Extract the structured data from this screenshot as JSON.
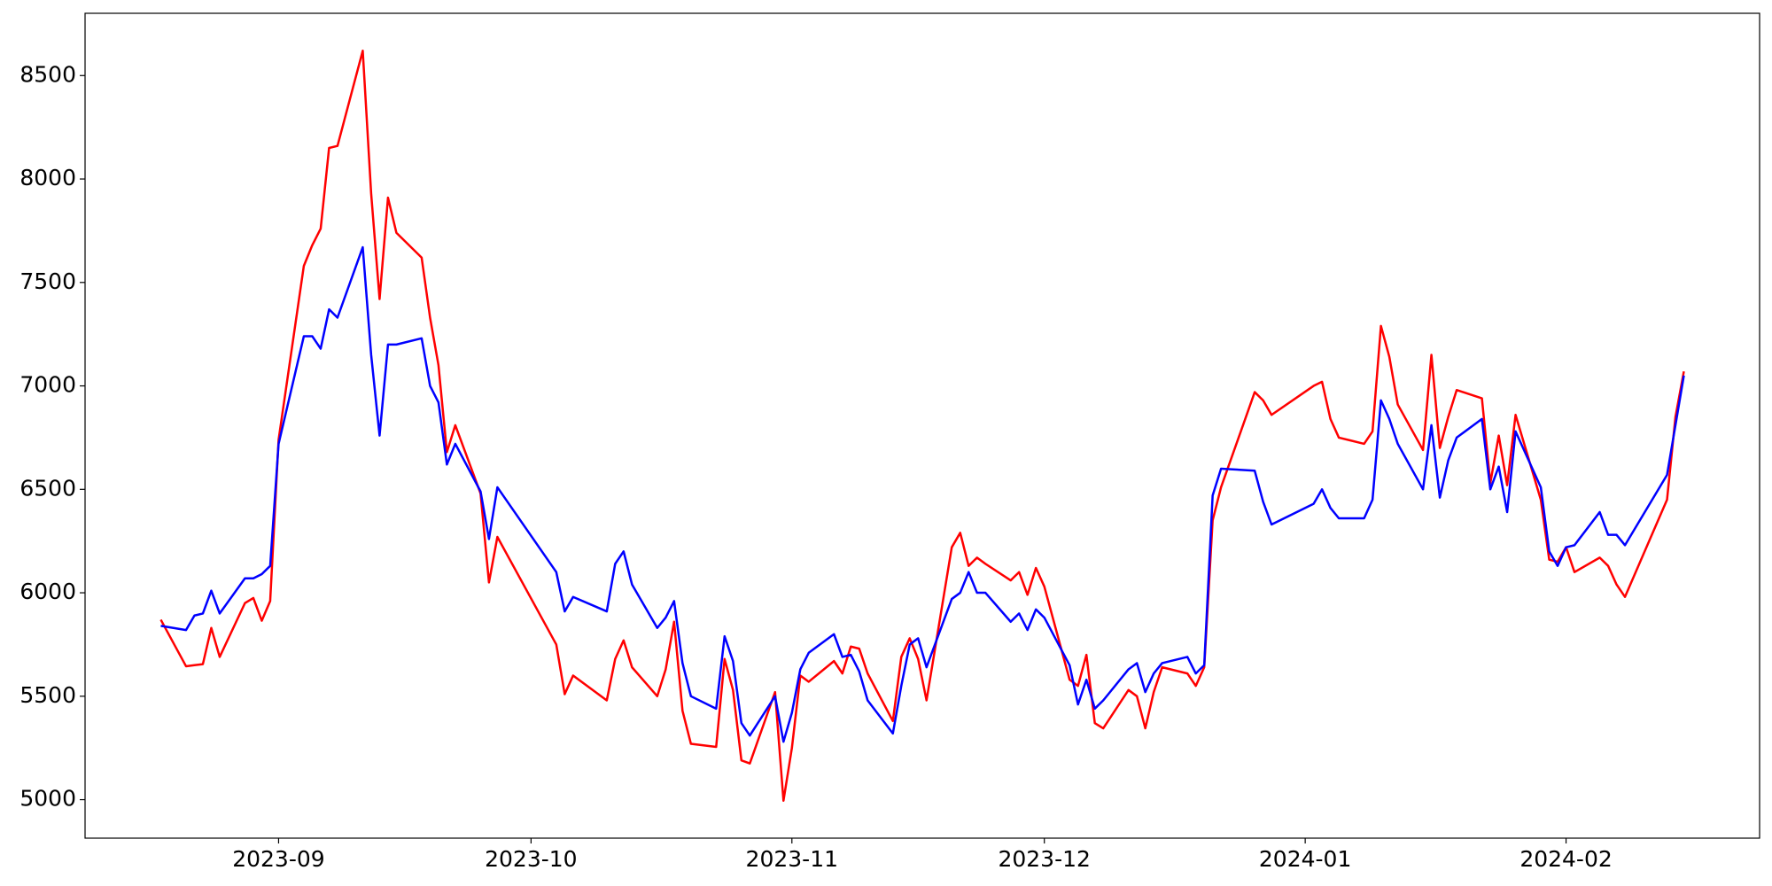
{
  "chart_data": {
    "type": "line",
    "x": [
      19587,
      19590,
      19591,
      19592,
      19593,
      19594,
      19597,
      19598,
      19599,
      19600,
      19601,
      19604,
      19605,
      19606,
      19607,
      19608,
      19611,
      19612,
      19613,
      19614,
      19615,
      19618,
      19619,
      19620,
      19621,
      19622,
      19625,
      19626,
      19627,
      19634,
      19635,
      19636,
      19640,
      19641,
      19642,
      19643,
      19646,
      19647,
      19648,
      19649,
      19650,
      19653,
      19654,
      19655,
      19656,
      19657,
      19660,
      19661,
      19662,
      19663,
      19664,
      19667,
      19668,
      19669,
      19670,
      19671,
      19674,
      19675,
      19676,
      19677,
      19678,
      19681,
      19682,
      19683,
      19684,
      19685,
      19688,
      19689,
      19690,
      19691,
      19692,
      19695,
      19696,
      19697,
      19698,
      19699,
      19702,
      19703,
      19704,
      19705,
      19706,
      19709,
      19710,
      19711,
      19712,
      19713,
      19717,
      19718,
      19719,
      19724,
      19725,
      19726,
      19727,
      19730,
      19731,
      19732,
      19733,
      19734,
      19737,
      19738,
      19739,
      19740,
      19741,
      19744,
      19745,
      19746,
      19747,
      19748,
      19751,
      19752,
      19753,
      19754,
      19755,
      19758,
      19759,
      19760,
      19761,
      19766,
      19767,
      19768
    ],
    "series": [
      {
        "color": "#ff0000",
        "values": [
          5870,
          5645,
          5650,
          5655,
          5830,
          5690,
          5950,
          5975,
          5865,
          5960,
          6740,
          7580,
          7680,
          7760,
          8150,
          8160,
          8620,
          7930,
          7420,
          7910,
          7740,
          7620,
          7330,
          7100,
          6680,
          6810,
          6480,
          6050,
          6270,
          5750,
          5510,
          5600,
          5480,
          5680,
          5770,
          5640,
          5500,
          5630,
          5860,
          5430,
          5270,
          5255,
          5680,
          5530,
          5190,
          5175,
          5520,
          4995,
          5250,
          5600,
          5570,
          5670,
          5610,
          5740,
          5730,
          5610,
          5380,
          5690,
          5780,
          5680,
          5480,
          6220,
          6290,
          6130,
          6170,
          6140,
          6060,
          6100,
          5990,
          6120,
          6030,
          5580,
          5550,
          5700,
          5370,
          5345,
          5530,
          5500,
          5345,
          5520,
          5640,
          5610,
          5550,
          5640,
          6350,
          6510,
          6970,
          6930,
          6860,
          7000,
          7020,
          6840,
          6750,
          6720,
          6780,
          7290,
          7140,
          6910,
          6690,
          7150,
          6700,
          6850,
          6980,
          6940,
          6530,
          6760,
          6520,
          6860,
          6450,
          6160,
          6150,
          6220,
          6100,
          6170,
          6130,
          6040,
          5980,
          6450,
          6850,
          7070
        ]
      },
      {
        "color": "#0000ff",
        "values": [
          5840,
          5820,
          5890,
          5900,
          6010,
          5900,
          6070,
          6070,
          6090,
          6130,
          6720,
          7240,
          7240,
          7180,
          7370,
          7330,
          7670,
          7150,
          6760,
          7200,
          7200,
          7230,
          7000,
          6920,
          6620,
          6720,
          6490,
          6260,
          6510,
          6100,
          5910,
          5980,
          5910,
          6140,
          6200,
          6040,
          5830,
          5880,
          5960,
          5660,
          5500,
          5440,
          5790,
          5670,
          5370,
          5310,
          5500,
          5280,
          5420,
          5630,
          5710,
          5800,
          5690,
          5700,
          5620,
          5480,
          5320,
          5550,
          5750,
          5780,
          5640,
          5970,
          6000,
          6100,
          6000,
          6000,
          5860,
          5900,
          5820,
          5920,
          5880,
          5650,
          5460,
          5580,
          5440,
          5480,
          5630,
          5660,
          5520,
          5610,
          5660,
          5690,
          5610,
          5650,
          6470,
          6600,
          6590,
          6440,
          6330,
          6430,
          6500,
          6410,
          6360,
          6360,
          6450,
          6930,
          6840,
          6720,
          6500,
          6810,
          6460,
          6640,
          6750,
          6840,
          6500,
          6610,
          6390,
          6780,
          6510,
          6200,
          6130,
          6220,
          6230,
          6390,
          6280,
          6280,
          6230,
          6570,
          6810,
          7050
        ]
      }
    ],
    "xlim": [
      19578,
      19777
    ],
    "xticks": [
      {
        "value": 19601,
        "label": "2023-09"
      },
      {
        "value": 19631,
        "label": "2023-10"
      },
      {
        "value": 19662,
        "label": "2023-11"
      },
      {
        "value": 19692,
        "label": "2023-12"
      },
      {
        "value": 19723,
        "label": "2024-01"
      },
      {
        "value": 19754,
        "label": "2024-02"
      }
    ],
    "ylim": [
      4814,
      8801
    ],
    "yticks": [
      5000,
      5500,
      6000,
      6500,
      7000,
      7500,
      8000,
      8500
    ],
    "line_width": 2.5
  }
}
